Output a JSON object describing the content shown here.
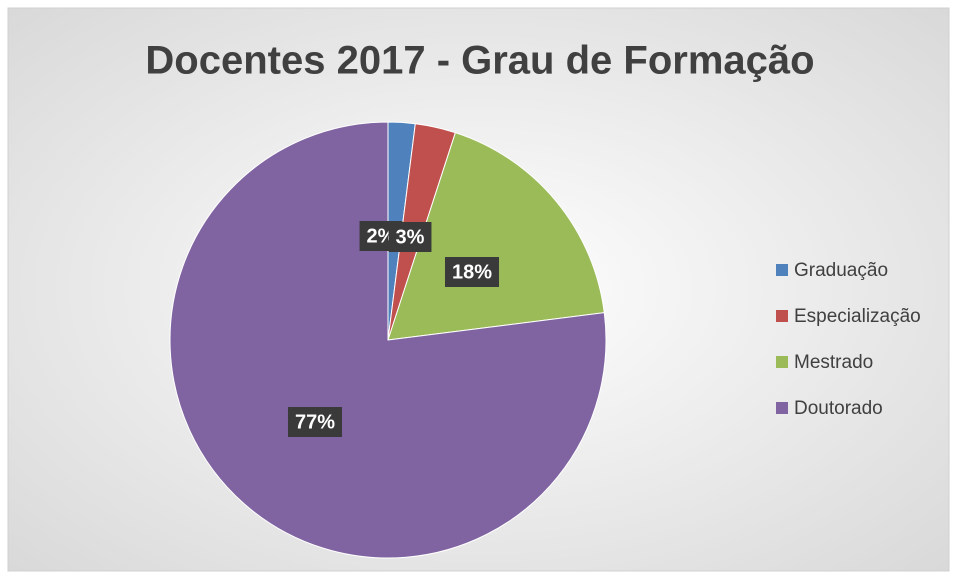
{
  "chart_data": {
    "type": "pie",
    "title": "Docentes 2017 - Grau de Formação",
    "categories": [
      "Graduação",
      "Especialização",
      "Mestrado",
      "Doutorado"
    ],
    "values": [
      2,
      3,
      18,
      77
    ],
    "value_labels": [
      "2%",
      "3%",
      "18%",
      "77%"
    ],
    "colors": [
      "#4f81bd",
      "#c0504d",
      "#9bbb59",
      "#8064a2"
    ],
    "legend": "right"
  }
}
